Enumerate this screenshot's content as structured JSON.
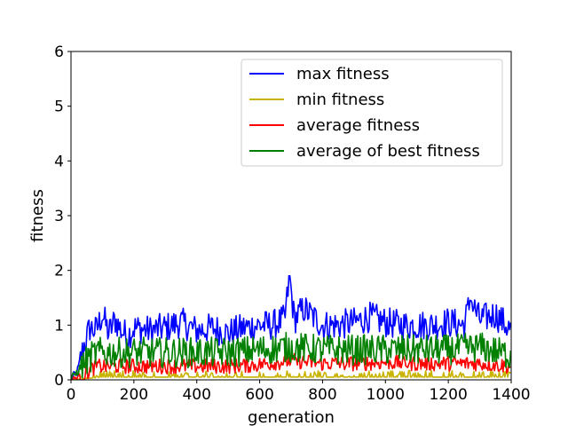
{
  "chart_data": {
    "type": "line",
    "xlabel": "generation",
    "ylabel": "fitness",
    "xlim": [
      0,
      1400
    ],
    "ylim": [
      0,
      6
    ],
    "xticks": [
      "0",
      "200",
      "400",
      "600",
      "800",
      "1000",
      "1200",
      "1400"
    ],
    "yticks": [
      "0",
      "1",
      "2",
      "3",
      "4",
      "5",
      "6"
    ],
    "grid": false,
    "legend_position": "upper-right",
    "series": [
      {
        "name": "max fitness",
        "color": "#0000ff",
        "x": [
          0,
          20,
          40,
          60,
          80,
          100,
          120,
          140,
          160,
          180,
          200,
          250,
          300,
          350,
          400,
          450,
          500,
          550,
          600,
          640,
          680,
          695,
          710,
          740,
          760,
          800,
          850,
          900,
          950,
          1000,
          1050,
          1100,
          1150,
          1200,
          1250,
          1270,
          1300,
          1350,
          1400
        ],
        "y": [
          0.0,
          0.15,
          0.6,
          0.95,
          0.9,
          1.2,
          0.85,
          1.1,
          0.9,
          0.8,
          0.95,
          0.9,
          0.95,
          1.05,
          0.9,
          0.95,
          0.85,
          0.95,
          1.0,
          1.0,
          1.1,
          1.9,
          1.1,
          1.3,
          1.2,
          1.0,
          1.0,
          1.05,
          1.15,
          1.05,
          1.0,
          1.0,
          1.0,
          1.05,
          1.0,
          1.45,
          1.1,
          1.2,
          0.9
        ],
        "amplitude": 0.28
      },
      {
        "name": "min fitness",
        "color": "#c8b400",
        "x": [
          0,
          100,
          200,
          300,
          400,
          500,
          600,
          700,
          800,
          900,
          1000,
          1100,
          1200,
          1300,
          1400
        ],
        "y": [
          0.0,
          0.05,
          0.05,
          0.05,
          0.05,
          0.05,
          0.05,
          0.05,
          0.05,
          0.05,
          0.05,
          0.05,
          0.05,
          0.05,
          0.05
        ],
        "amplitude": 0.12
      },
      {
        "name": "average fitness",
        "color": "#ff0000",
        "x": [
          0,
          40,
          80,
          120,
          200,
          300,
          400,
          500,
          600,
          700,
          800,
          900,
          1000,
          1100,
          1200,
          1300,
          1400
        ],
        "y": [
          0.0,
          0.1,
          0.25,
          0.25,
          0.25,
          0.25,
          0.25,
          0.25,
          0.28,
          0.35,
          0.3,
          0.3,
          0.32,
          0.3,
          0.3,
          0.3,
          0.25
        ],
        "amplitude": 0.14
      },
      {
        "name": "average of best fitness",
        "color": "#008000",
        "x": [
          0,
          40,
          80,
          120,
          200,
          300,
          400,
          500,
          600,
          700,
          800,
          900,
          1000,
          1100,
          1200,
          1300,
          1400
        ],
        "y": [
          0.0,
          0.3,
          0.5,
          0.5,
          0.5,
          0.5,
          0.5,
          0.5,
          0.55,
          0.6,
          0.55,
          0.55,
          0.55,
          0.55,
          0.55,
          0.6,
          0.45
        ],
        "amplitude": 0.28
      }
    ]
  }
}
